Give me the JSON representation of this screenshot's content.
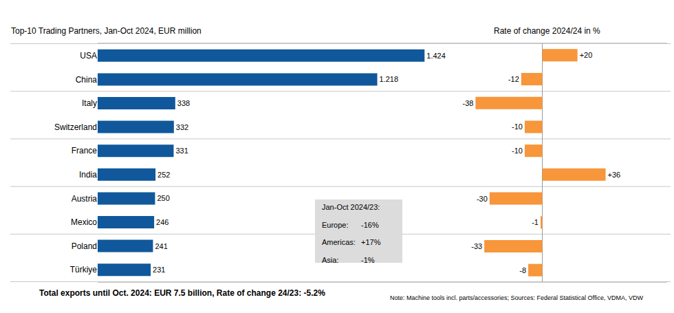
{
  "chart_data": [
    {
      "type": "bar",
      "orientation": "horizontal",
      "title": "Top-10 Trading Partners, Jan-Oct 2024, EUR million",
      "categories": [
        "USA",
        "China",
        "Italy",
        "Switzerland",
        "France",
        "India",
        "Austria",
        "Mexico",
        "Poland",
        "Türkiye"
      ],
      "values": [
        1424,
        1218,
        338,
        332,
        331,
        252,
        250,
        246,
        241,
        231
      ],
      "value_labels": [
        "1.424",
        "1.218",
        "338",
        "332",
        "331",
        "252",
        "250",
        "246",
        "241",
        "231"
      ],
      "data_labels": true,
      "color": "#10589b",
      "xlim": [
        0,
        1600
      ],
      "tick_labels": "y",
      "grid": false
    },
    {
      "type": "bar",
      "orientation": "horizontal",
      "title": "Rate of change 2024/24 in %",
      "categories": [
        "USA",
        "China",
        "Italy",
        "Switzerland",
        "France",
        "India",
        "Austria",
        "Mexico",
        "Poland",
        "Türkiye"
      ],
      "values": [
        20,
        -12,
        -38,
        -10,
        -10,
        36,
        -30,
        -1,
        -33,
        -8
      ],
      "value_labels": [
        "+20",
        "-12",
        "-38",
        "-10",
        "-10",
        "+36",
        "-30",
        "-1",
        "-33",
        "-8"
      ],
      "data_labels": true,
      "color": "#f7963b",
      "xlim": [
        -44,
        71
      ],
      "tick_labels": false,
      "grid": false
    }
  ],
  "box": {
    "title": "Jan-Oct 2024/23:",
    "items": [
      {
        "label": "Europe:",
        "value": "-16%"
      },
      {
        "label": "Americas:",
        "value": "+17%"
      },
      {
        "label": "Asia:",
        "value": "-1%"
      }
    ]
  },
  "footer": "Total exports until Oct. 2024: EUR 7.5 billion, Rate of change 24/23: -5.2%",
  "note": "Note: Machine tools incl. parts/accessories; Sources: Federal Statistical Office, VDMA, VDW"
}
